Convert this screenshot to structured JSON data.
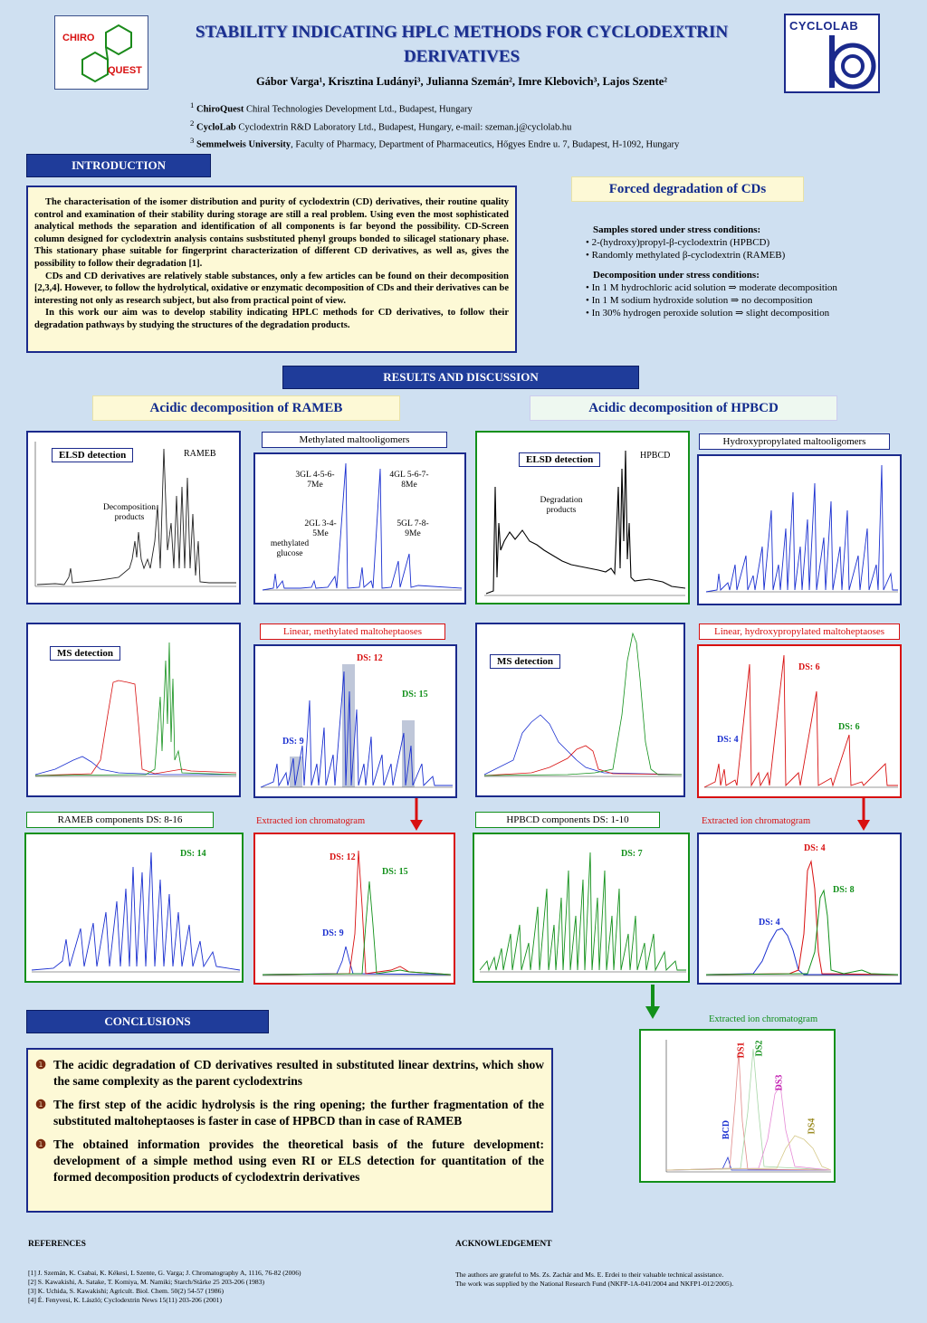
{
  "header": {
    "title_line1": "STABILITY INDICATING HPLC METHODS FOR CYCLODEXTRIN",
    "title_line2": "DERIVATIVES",
    "authors": "Gábor Varga¹, Krisztina Ludányi³, Julianna Szemán², Imre Klebovich³, Lajos Szente²",
    "affiliations": [
      {
        "num": "1",
        "name": "ChiroQuest",
        "text": " Chiral Technologies Development Ltd., Budapest, Hungary"
      },
      {
        "num": "2",
        "name": "CycloLab",
        "text": " Cyclodextrin R&D Laboratory Ltd., Budapest, Hungary, e-mail: szeman.j@cyclolab.hu"
      },
      {
        "num": "3",
        "name": "Semmelweis University",
        "text": ", Faculty of Pharmacy, Department of Pharmaceutics, Hőgyes  Endre u. 7, Budapest, H-1092, Hungary"
      }
    ],
    "logo_left_top": "CHIRO",
    "logo_left_bottom": "QUEST",
    "logo_right": "CYCLOLAB"
  },
  "introduction": {
    "heading": "INTRODUCTION",
    "paragraphs": [
      "The characterisation of the isomer distribution and purity of cyclodextrin (CD) derivatives, their routine quality control and examination of their stability during storage are still a real problem. Using even the most sophisticated analytical methods the separation and identification of all components is far beyond the possibility. CD-Screen column designed for cyclodextrin analysis contains susbstituted phenyl groups bonded to silicagel stationary phase. This stationary phase suitable for fingerprint characterization of different CD derivatives, as well as, gives the possibility to follow their degradation [1].",
      "CDs and CD derivatives are relatively stable substances, only a few articles can be found on their decomposition [2,3,4]. However, to follow the hydrolytical, oxidative or enzymatic decomposition of CDs and their derivatives can be interesting not only as research subject, but also from practical point of view.",
      "In this work our aim was to develop stability indicating HPLC methods for CD derivatives, to follow their degradation pathways by studying the structures of the degradation products."
    ]
  },
  "forced": {
    "heading": "Forced degradation of CDs",
    "samples_heading": "Samples stored under stress conditions:",
    "samples": [
      "2-(hydroxy)propyl-β-cyclodextrin (HPBCD)",
      "Randomly methylated β-cyclodextrin (RAMEB)"
    ],
    "decomp_heading": "Decomposition under stress conditions:",
    "decomp": [
      "In 1 M hydrochloric acid solution ⇒ moderate decomposition",
      "In 1 M sodium hydroxide solution ⇒ no decomposition",
      "In 30% hydrogen peroxide solution  ⇒ slight decomposition"
    ]
  },
  "results": {
    "heading": "RESULTS AND DISCUSSION",
    "rameb_heading": "Acidic decomposition of RAMEB",
    "hpbcd_heading": "Acidic decomposition of HPBCD",
    "elsd": "ELSD detection",
    "ms": "MS detection",
    "rameb_label": "RAMEB",
    "decomp_products": "Decomposition products",
    "hpbcd_label": "HPBCD",
    "degr_products": "Degradation products",
    "methyl_malto": "Methylated maltooligomers",
    "hp_malto": "Hydroxypropylated maltooligomers",
    "lin_methyl": "Linear, methylated maltoheptaoses",
    "lin_hp": "Linear, hydroxypropylated maltoheptaoses",
    "rameb_comp": "RAMEB components DS: 8-16",
    "hpbcd_comp": "HPBCD components DS: 1-10",
    "eic": "Extracted ion chromatogram",
    "ann_3gl": "3GL 4-5-6-7Me",
    "ann_4gl": "4GL 5-6-7-8Me",
    "ann_2gl": "2GL 3-4-5Me",
    "ann_5gl": "5GL 7-8-9Me",
    "ann_mglu": "methylated glucose",
    "ds12": "DS: 12",
    "ds15": "DS: 15",
    "ds9": "DS: 9",
    "ds6": "DS: 6",
    "ds4": "DS: 4",
    "ds14": "DS: 14",
    "ds7": "DS: 7",
    "ds8": "DS: 8",
    "bcd": "BCD",
    "dsa1": "DS1",
    "dsa2": "DS2",
    "dsa3": "DS3",
    "dsa4": "DS4"
  },
  "conclusions": {
    "heading": "CONCLUSIONS",
    "bullet": "❶",
    "items": [
      "The acidic degradation of CD derivatives resulted in substituted linear dextrins, which show the same complexity as the parent cyclodextrins",
      "The first step of the acidic hydrolysis is the ring opening; the further fragmentation of the substituted maltoheptaoses is faster in case of HPBCD than in case of RAMEB",
      "The obtained information provides the theoretical basis of the future development: development of a simple method using even RI or ELS detection for quantitation of the formed decomposition products of cyclodextrin derivatives"
    ]
  },
  "references": {
    "heading": "REFERENCES",
    "items": [
      "[1]  J. Szemán, K. Csabai, K. Kékesi, L Szente, G. Varga;  J. Chromatography A, 1116, 76-82 (2006)",
      "[2]  S. Kawakishi, A. Satake, T. Komiya, M. Namiki; Starch/Stärke 25 203-206 (1983)",
      "[3]  K. Uchida, S. Kawakishi; Agricult. Biol. Chem. 50(2) 54-57 (1986)",
      "[4]  É. Fenyvesi, K. László; Cyclodextrin News 15(11) 203-206 (2001)"
    ]
  },
  "acknowledgement": {
    "heading": "ACKNOWLEDGEMENT",
    "items": [
      "The authors are grateful to Ms. Zs. Zachár and Ms. E. Erdei to their valuable technical assistance.",
      "The work was supplied by the National Research Fund (NKFP-1A-041/2004 and NKFP1-012/2005)."
    ]
  },
  "colors": {
    "navy": "#1f3c9a",
    "blue_trace": "#1a2fd0",
    "red_trace": "#d81010",
    "green_trace": "#12901a"
  }
}
